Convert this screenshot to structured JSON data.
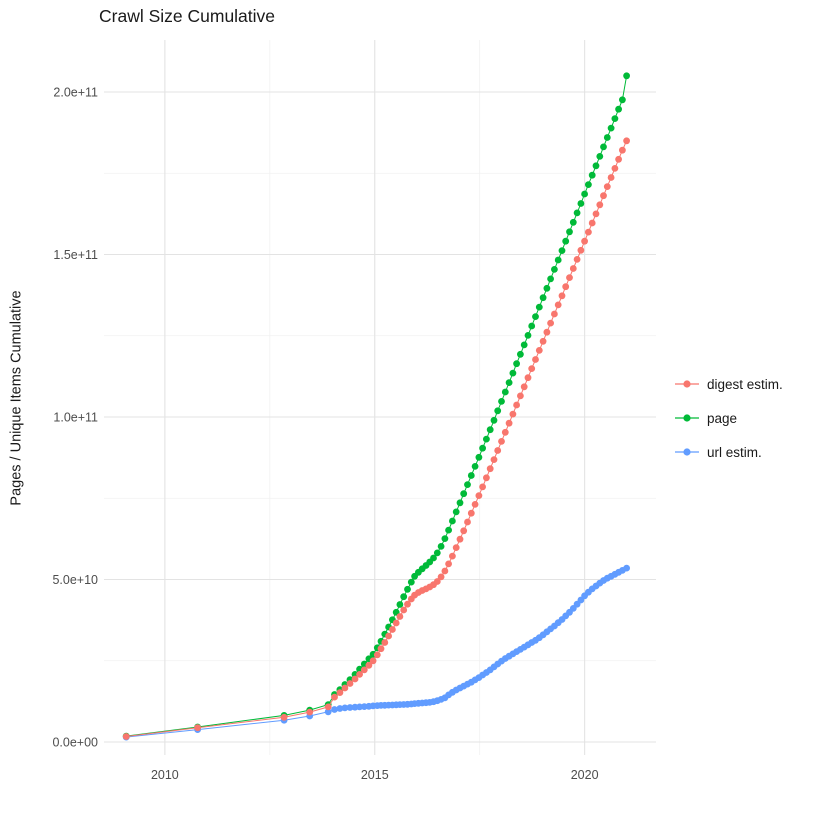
{
  "chart_data": {
    "type": "scatter-line",
    "title": "Crawl Size Cumulative",
    "xlabel": "",
    "ylabel": "Pages / Unique Items Cumulative",
    "values_unit": "1e9 (points stored as [decimal_year, billions_of_items])",
    "x_axis": {
      "ticks": [
        2010,
        2015,
        2020
      ],
      "labels": [
        "2010",
        "2015",
        "2020"
      ],
      "minor_ticks": [
        2012.5,
        2017.5
      ],
      "range": [
        2008.55,
        2021.7
      ]
    },
    "y_axis": {
      "ticks": [
        0,
        50,
        100,
        150,
        200
      ],
      "labels": [
        "0.0e+00",
        "5.0e+10",
        "1.0e+11",
        "1.5e+11",
        "2.0e+11"
      ],
      "minor_ticks": [
        25,
        75,
        125,
        175
      ],
      "range": [
        -4,
        216
      ]
    },
    "grid": {
      "major_color": "#e3e3e3",
      "minor_color": "#f1f1f1",
      "background": "#ffffff"
    },
    "legend_position": "right",
    "series": [
      {
        "name": "digest estim.",
        "key": "digest-estim",
        "color": "#F8766D",
        "points": [
          [
            2009.08,
            1.7
          ],
          [
            2010.78,
            4.4
          ],
          [
            2012.84,
            7.6
          ],
          [
            2013.45,
            9.2
          ],
          [
            2013.89,
            10.8
          ],
          [
            2014.04,
            13.8
          ],
          [
            2014.17,
            15.2
          ],
          [
            2014.29,
            16.6
          ],
          [
            2014.41,
            18.0
          ],
          [
            2014.53,
            19.4
          ],
          [
            2014.64,
            20.8
          ],
          [
            2014.75,
            22.2
          ],
          [
            2014.86,
            23.6
          ],
          [
            2014.96,
            25.0
          ],
          [
            2015.06,
            26.8
          ],
          [
            2015.15,
            28.7
          ],
          [
            2015.24,
            30.6
          ],
          [
            2015.33,
            32.6
          ],
          [
            2015.42,
            34.6
          ],
          [
            2015.51,
            36.6
          ],
          [
            2015.6,
            38.6
          ],
          [
            2015.69,
            40.6
          ],
          [
            2015.78,
            42.4
          ],
          [
            2015.87,
            44.0
          ],
          [
            2015.95,
            45.2
          ],
          [
            2016.04,
            46.0
          ],
          [
            2016.13,
            46.6
          ],
          [
            2016.22,
            47.1
          ],
          [
            2016.31,
            47.7
          ],
          [
            2016.4,
            48.4
          ],
          [
            2016.49,
            49.4
          ],
          [
            2016.58,
            50.8
          ],
          [
            2016.67,
            52.6
          ],
          [
            2016.76,
            54.8
          ],
          [
            2016.85,
            57.2
          ],
          [
            2016.94,
            59.8
          ],
          [
            2017.03,
            62.4
          ],
          [
            2017.12,
            65.0
          ],
          [
            2017.21,
            67.7
          ],
          [
            2017.3,
            70.4
          ],
          [
            2017.39,
            73.1
          ],
          [
            2017.48,
            75.8
          ],
          [
            2017.57,
            78.5
          ],
          [
            2017.66,
            81.3
          ],
          [
            2017.75,
            84.1
          ],
          [
            2017.84,
            86.9
          ],
          [
            2017.93,
            89.7
          ],
          [
            2018.02,
            92.5
          ],
          [
            2018.11,
            95.3
          ],
          [
            2018.2,
            98.1
          ],
          [
            2018.29,
            100.9
          ],
          [
            2018.38,
            103.7
          ],
          [
            2018.47,
            106.5
          ],
          [
            2018.56,
            109.3
          ],
          [
            2018.65,
            112.1
          ],
          [
            2018.74,
            114.9
          ],
          [
            2018.83,
            117.7
          ],
          [
            2018.92,
            120.5
          ],
          [
            2019.01,
            123.3
          ],
          [
            2019.1,
            126.1
          ],
          [
            2019.19,
            128.9
          ],
          [
            2019.28,
            131.7
          ],
          [
            2019.37,
            134.5
          ],
          [
            2019.46,
            137.3
          ],
          [
            2019.55,
            140.1
          ],
          [
            2019.64,
            142.9
          ],
          [
            2019.73,
            145.7
          ],
          [
            2019.82,
            148.5
          ],
          [
            2019.91,
            151.3
          ],
          [
            2020.0,
            154.1
          ],
          [
            2020.09,
            156.9
          ],
          [
            2020.18,
            159.7
          ],
          [
            2020.27,
            162.5
          ],
          [
            2020.36,
            165.3
          ],
          [
            2020.45,
            168.1
          ],
          [
            2020.54,
            170.9
          ],
          [
            2020.63,
            173.7
          ],
          [
            2020.72,
            176.5
          ],
          [
            2020.81,
            179.3
          ],
          [
            2020.9,
            182.1
          ],
          [
            2021.0,
            185.0
          ]
        ]
      },
      {
        "name": "page",
        "key": "page",
        "color": "#00BA38",
        "points": [
          [
            2009.08,
            1.8
          ],
          [
            2010.78,
            4.6
          ],
          [
            2012.84,
            8.2
          ],
          [
            2013.45,
            9.8
          ],
          [
            2013.89,
            11.5
          ],
          [
            2014.04,
            14.6
          ],
          [
            2014.17,
            16.1
          ],
          [
            2014.29,
            17.7
          ],
          [
            2014.41,
            19.2
          ],
          [
            2014.53,
            20.8
          ],
          [
            2014.64,
            22.4
          ],
          [
            2014.75,
            24.0
          ],
          [
            2014.86,
            25.6
          ],
          [
            2014.96,
            27.0
          ],
          [
            2015.06,
            29.0
          ],
          [
            2015.15,
            31.0
          ],
          [
            2015.24,
            33.2
          ],
          [
            2015.33,
            35.4
          ],
          [
            2015.42,
            37.6
          ],
          [
            2015.51,
            39.9
          ],
          [
            2015.6,
            42.3
          ],
          [
            2015.69,
            44.7
          ],
          [
            2015.78,
            47.0
          ],
          [
            2015.87,
            49.2
          ],
          [
            2015.95,
            51.0
          ],
          [
            2016.04,
            52.2
          ],
          [
            2016.13,
            53.3
          ],
          [
            2016.22,
            54.3
          ],
          [
            2016.31,
            55.4
          ],
          [
            2016.4,
            56.6
          ],
          [
            2016.49,
            58.2
          ],
          [
            2016.58,
            60.2
          ],
          [
            2016.67,
            62.6
          ],
          [
            2016.76,
            65.2
          ],
          [
            2016.85,
            68.0
          ],
          [
            2016.94,
            70.8
          ],
          [
            2017.03,
            73.6
          ],
          [
            2017.12,
            76.4
          ],
          [
            2017.21,
            79.2
          ],
          [
            2017.3,
            82.0
          ],
          [
            2017.39,
            84.8
          ],
          [
            2017.48,
            87.6
          ],
          [
            2017.57,
            90.4
          ],
          [
            2017.66,
            93.2
          ],
          [
            2017.75,
            96.1
          ],
          [
            2017.84,
            99.0
          ],
          [
            2017.93,
            101.9
          ],
          [
            2018.02,
            104.8
          ],
          [
            2018.11,
            107.7
          ],
          [
            2018.2,
            110.6
          ],
          [
            2018.29,
            113.5
          ],
          [
            2018.38,
            116.4
          ],
          [
            2018.47,
            119.3
          ],
          [
            2018.56,
            122.2
          ],
          [
            2018.65,
            125.1
          ],
          [
            2018.74,
            128.0
          ],
          [
            2018.83,
            130.9
          ],
          [
            2018.92,
            133.8
          ],
          [
            2019.01,
            136.7
          ],
          [
            2019.1,
            139.6
          ],
          [
            2019.19,
            142.5
          ],
          [
            2019.28,
            145.4
          ],
          [
            2019.37,
            148.3
          ],
          [
            2019.46,
            151.2
          ],
          [
            2019.55,
            154.1
          ],
          [
            2019.64,
            157.0
          ],
          [
            2019.73,
            159.9
          ],
          [
            2019.82,
            162.8
          ],
          [
            2019.91,
            165.7
          ],
          [
            2020.0,
            168.6
          ],
          [
            2020.09,
            171.5
          ],
          [
            2020.18,
            174.4
          ],
          [
            2020.27,
            177.3
          ],
          [
            2020.36,
            180.2
          ],
          [
            2020.45,
            183.1
          ],
          [
            2020.54,
            186.0
          ],
          [
            2020.63,
            188.9
          ],
          [
            2020.72,
            191.8
          ],
          [
            2020.81,
            194.7
          ],
          [
            2020.9,
            197.6
          ],
          [
            2021.0,
            205.0
          ]
        ]
      },
      {
        "name": "url estim.",
        "key": "url-estim",
        "color": "#619CFF",
        "points": [
          [
            2009.08,
            1.5
          ],
          [
            2010.78,
            3.8
          ],
          [
            2012.84,
            6.7
          ],
          [
            2013.45,
            8.0
          ],
          [
            2013.89,
            9.3
          ],
          [
            2014.04,
            10.0
          ],
          [
            2014.17,
            10.3
          ],
          [
            2014.29,
            10.5
          ],
          [
            2014.41,
            10.6
          ],
          [
            2014.53,
            10.7
          ],
          [
            2014.64,
            10.8
          ],
          [
            2014.75,
            10.9
          ],
          [
            2014.86,
            11.0
          ],
          [
            2014.96,
            11.1
          ],
          [
            2015.06,
            11.2
          ],
          [
            2015.15,
            11.25
          ],
          [
            2015.24,
            11.3
          ],
          [
            2015.33,
            11.35
          ],
          [
            2015.42,
            11.4
          ],
          [
            2015.51,
            11.45
          ],
          [
            2015.6,
            11.5
          ],
          [
            2015.69,
            11.55
          ],
          [
            2015.78,
            11.6
          ],
          [
            2015.87,
            11.7
          ],
          [
            2015.95,
            11.8
          ],
          [
            2016.04,
            11.9
          ],
          [
            2016.13,
            12.0
          ],
          [
            2016.22,
            12.1
          ],
          [
            2016.31,
            12.2
          ],
          [
            2016.4,
            12.4
          ],
          [
            2016.49,
            12.7
          ],
          [
            2016.58,
            13.1
          ],
          [
            2016.67,
            13.6
          ],
          [
            2016.76,
            14.5
          ],
          [
            2016.85,
            15.3
          ],
          [
            2016.94,
            16.0
          ],
          [
            2017.03,
            16.6
          ],
          [
            2017.12,
            17.2
          ],
          [
            2017.21,
            17.8
          ],
          [
            2017.3,
            18.4
          ],
          [
            2017.39,
            19.1
          ],
          [
            2017.48,
            19.8
          ],
          [
            2017.57,
            20.6
          ],
          [
            2017.66,
            21.4
          ],
          [
            2017.75,
            22.2
          ],
          [
            2017.84,
            23.1
          ],
          [
            2017.93,
            24.0
          ],
          [
            2018.02,
            24.9
          ],
          [
            2018.11,
            25.7
          ],
          [
            2018.2,
            26.4
          ],
          [
            2018.29,
            27.1
          ],
          [
            2018.38,
            27.8
          ],
          [
            2018.47,
            28.5
          ],
          [
            2018.56,
            29.2
          ],
          [
            2018.65,
            29.9
          ],
          [
            2018.74,
            30.6
          ],
          [
            2018.83,
            31.3
          ],
          [
            2018.92,
            32.1
          ],
          [
            2019.01,
            33.0
          ],
          [
            2019.1,
            33.9
          ],
          [
            2019.19,
            34.8
          ],
          [
            2019.28,
            35.7
          ],
          [
            2019.37,
            36.7
          ],
          [
            2019.46,
            37.7
          ],
          [
            2019.55,
            38.8
          ],
          [
            2019.64,
            39.9
          ],
          [
            2019.73,
            41.1
          ],
          [
            2019.82,
            42.4
          ],
          [
            2019.91,
            43.7
          ],
          [
            2020.0,
            45.0
          ],
          [
            2020.09,
            46.1
          ],
          [
            2020.18,
            47.1
          ],
          [
            2020.27,
            48.0
          ],
          [
            2020.36,
            48.9
          ],
          [
            2020.45,
            49.7
          ],
          [
            2020.54,
            50.4
          ],
          [
            2020.63,
            51.0
          ],
          [
            2020.72,
            51.6
          ],
          [
            2020.81,
            52.2
          ],
          [
            2020.9,
            52.8
          ],
          [
            2021.0,
            53.5
          ]
        ]
      }
    ]
  }
}
